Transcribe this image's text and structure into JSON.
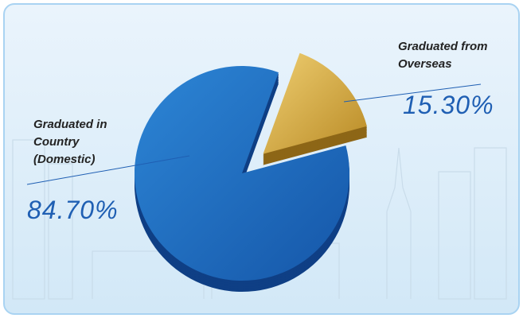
{
  "chart_data": {
    "type": "pie",
    "categories": [
      "Graduated in Country (Domestic)",
      "Graduated from Overseas"
    ],
    "values": [
      84.7,
      15.3
    ],
    "value_labels": [
      "84.70%",
      "15.30%"
    ],
    "colors": [
      "#1e6ec4",
      "#d7ac45"
    ]
  }
}
